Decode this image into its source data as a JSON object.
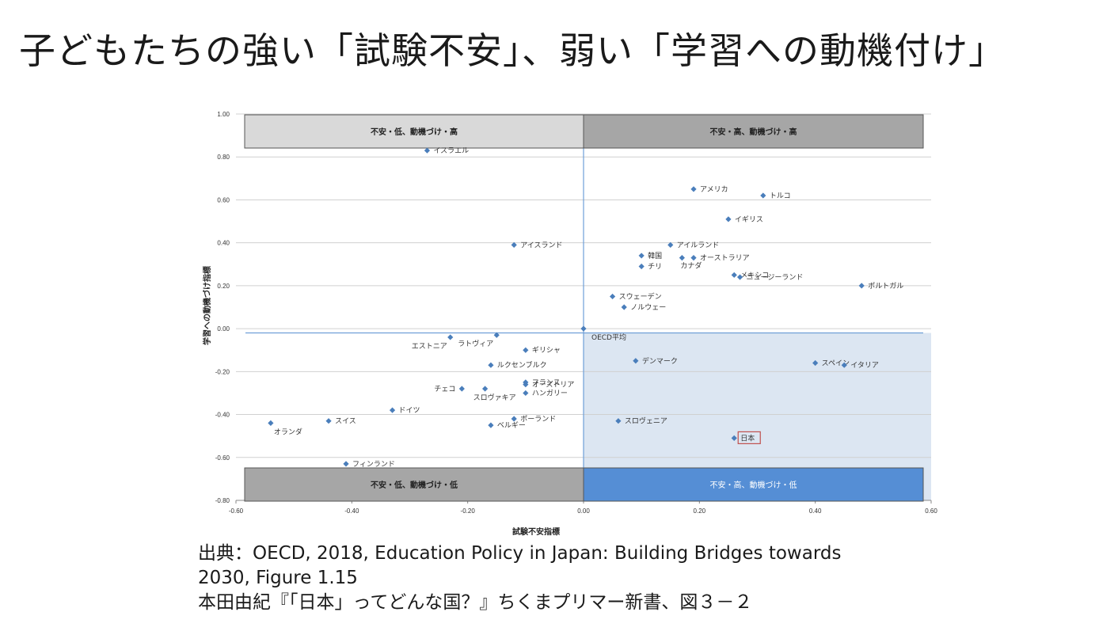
{
  "slide": {
    "title": "子どもたちの強い「試験不安」、弱い「学習への動機付け」"
  },
  "chart_data": {
    "type": "scatter",
    "title": "",
    "xlabel": "試験不安指標",
    "ylabel": "学習への動機づけ指標",
    "xlim": [
      -0.6,
      0.6
    ],
    "ylim": [
      -0.8,
      1.0
    ],
    "xticks": [
      -0.6,
      -0.4,
      -0.2,
      0.0,
      0.2,
      0.4,
      0.6
    ],
    "xtick_labels": [
      "-0.60",
      "-0.40",
      "-0.20",
      "0.00",
      "0.20",
      "0.40",
      "0.60"
    ],
    "yticks": [
      1.0,
      0.8,
      0.6,
      0.4,
      0.2,
      0.0,
      -0.2,
      -0.4,
      -0.6,
      -0.8
    ],
    "ytick_labels": [
      "1.00",
      "0.80",
      "0.60",
      "0.40",
      "0.20",
      "0.00",
      "-0.20",
      "-0.40",
      "-0.60",
      "-0.80"
    ],
    "grid": "horizontal",
    "marker_color": "#4a7ebb",
    "quadrants": [
      {
        "label": "不安・低、動機づけ・高",
        "fill": "#d9d9d9",
        "text_color": "#222222"
      },
      {
        "label": "不安・高、動機づけ・高",
        "fill": "#a6a6a6",
        "text_color": "#222222"
      },
      {
        "label": "不安・低、動機づけ・低",
        "fill": "#a6a6a6",
        "text_color": "#222222"
      },
      {
        "label": "不安・高、動機づけ・低",
        "fill": "#558ed5",
        "text_color": "#ffffff"
      }
    ],
    "highlight_fill": "#dce6f2",
    "points": [
      {
        "label": "イスラエル",
        "x": -0.27,
        "y": 0.83
      },
      {
        "label": "アメリカ",
        "x": 0.19,
        "y": 0.65
      },
      {
        "label": "トルコ",
        "x": 0.31,
        "y": 0.62
      },
      {
        "label": "イギリス",
        "x": 0.25,
        "y": 0.51
      },
      {
        "label": "アイスランド",
        "x": -0.12,
        "y": 0.39
      },
      {
        "label": "アイルランド",
        "x": 0.15,
        "y": 0.39
      },
      {
        "label": "韓国",
        "x": 0.1,
        "y": 0.34
      },
      {
        "label": "オーストラリア",
        "x": 0.19,
        "y": 0.33
      },
      {
        "label": "カナダ",
        "x": 0.17,
        "y": 0.33
      },
      {
        "label": "チリ",
        "x": 0.1,
        "y": 0.29
      },
      {
        "label": "メキシコ",
        "x": 0.26,
        "y": 0.25
      },
      {
        "label": "ニュージーランド",
        "x": 0.27,
        "y": 0.24
      },
      {
        "label": "ポルトガル",
        "x": 0.48,
        "y": 0.2
      },
      {
        "label": "スウェーデン",
        "x": 0.05,
        "y": 0.15
      },
      {
        "label": "ノルウェー",
        "x": 0.07,
        "y": 0.1
      },
      {
        "label": "OECD平均",
        "x": 0.0,
        "y": 0.0
      },
      {
        "label": "エストニア",
        "x": -0.23,
        "y": -0.04
      },
      {
        "label": "ラトヴィア",
        "x": -0.15,
        "y": -0.03
      },
      {
        "label": "ギリシャ",
        "x": -0.1,
        "y": -0.1
      },
      {
        "label": "デンマーク",
        "x": 0.09,
        "y": -0.15
      },
      {
        "label": "スペイン",
        "x": 0.4,
        "y": -0.16
      },
      {
        "label": "イタリア",
        "x": 0.45,
        "y": -0.17
      },
      {
        "label": "ルクセンブルク",
        "x": -0.16,
        "y": -0.17
      },
      {
        "label": "フランス",
        "x": -0.1,
        "y": -0.25
      },
      {
        "label": "オーストリア",
        "x": -0.1,
        "y": -0.26
      },
      {
        "label": "ハンガリー",
        "x": -0.1,
        "y": -0.3
      },
      {
        "label": "チェコ",
        "x": -0.21,
        "y": -0.28
      },
      {
        "label": "スロヴァキア",
        "x": -0.17,
        "y": -0.28
      },
      {
        "label": "ドイツ",
        "x": -0.33,
        "y": -0.38
      },
      {
        "label": "スイス",
        "x": -0.44,
        "y": -0.43
      },
      {
        "label": "オランダ",
        "x": -0.54,
        "y": -0.44
      },
      {
        "label": "ポーランド",
        "x": -0.12,
        "y": -0.42
      },
      {
        "label": "ベルギー",
        "x": -0.16,
        "y": -0.45
      },
      {
        "label": "スロヴェニア",
        "x": 0.06,
        "y": -0.43
      },
      {
        "label": "日本",
        "x": 0.26,
        "y": -0.51
      },
      {
        "label": "フィンランド",
        "x": -0.41,
        "y": -0.63
      }
    ],
    "highlighted": "日本",
    "highlight_color": "#c0504d"
  },
  "source": {
    "line1": "出典：OECD, 2018, Education Policy in Japan: Building Bridges towards",
    "line2": "2030, Figure 1.15",
    "line3": "本田由紀『「日本」ってどんな国？』ちくまプリマー新書、図３－２"
  }
}
